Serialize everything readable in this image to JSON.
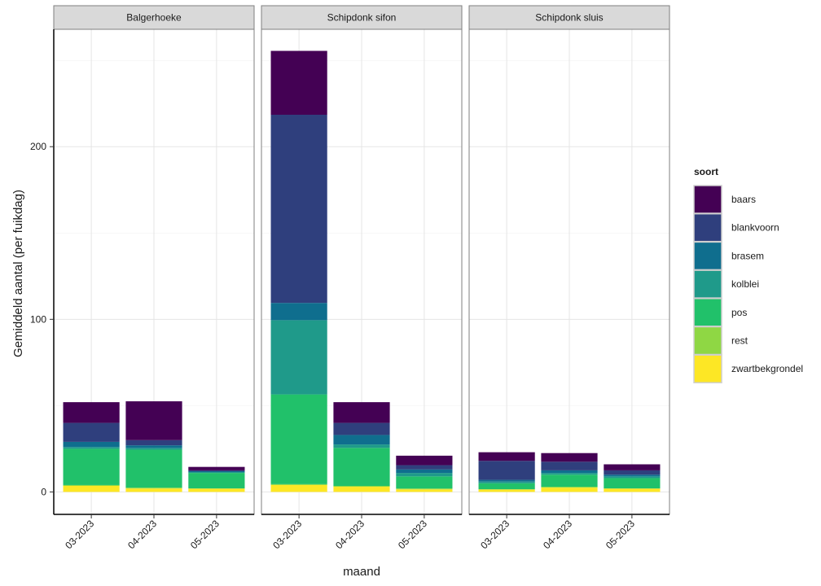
{
  "chart_data": {
    "type": "bar",
    "stacked": true,
    "title": "",
    "xlabel": "maand",
    "ylabel": "Gemiddeld aantal (per fuikdag)",
    "ylim": [
      -13,
      268
    ],
    "yticks": [
      0,
      100,
      200
    ],
    "grid": true,
    "legend_placement": "right",
    "legend_title": "soort",
    "categories": [
      "03-2023",
      "04-2023",
      "05-2023"
    ],
    "series": [
      {
        "name": "zwartbekgrondel",
        "color": "#FDE725"
      },
      {
        "name": "rest",
        "color": "#8FD744"
      },
      {
        "name": "pos",
        "color": "#21C16A"
      },
      {
        "name": "kolblei",
        "color": "#1F9A8A"
      },
      {
        "name": "brasem",
        "color": "#0F6E8E"
      },
      {
        "name": "blankvoorn",
        "color": "#2F3F7D"
      },
      {
        "name": "baars",
        "color": "#440154"
      }
    ],
    "panels": [
      {
        "name": "Balgerhoeke",
        "values": {
          "zwartbekgrondel": [
            3.5,
            2,
            2
          ],
          "rest": [
            0.5,
            0.5,
            0
          ],
          "pos": [
            21,
            22,
            9
          ],
          "kolblei": [
            1,
            1,
            0.5
          ],
          "brasem": [
            3,
            1.5,
            0.5
          ],
          "blankvoorn": [
            11,
            3,
            0.5
          ],
          "baars": [
            12,
            22.5,
            2
          ]
        }
      },
      {
        "name": "Schipdonk sifon",
        "values": {
          "zwartbekgrondel": [
            4,
            3,
            1.5
          ],
          "rest": [
            0.5,
            0.5,
            0.5
          ],
          "pos": [
            52,
            22,
            7
          ],
          "kolblei": [
            43,
            2,
            2
          ],
          "brasem": [
            10,
            5.5,
            2
          ],
          "blankvoorn": [
            109,
            7,
            2.5
          ],
          "baars": [
            37,
            12,
            5.5
          ]
        }
      },
      {
        "name": "Schipdonk sluis",
        "values": {
          "zwartbekgrondel": [
            1.5,
            2.5,
            2
          ],
          "rest": [
            0,
            0.5,
            0
          ],
          "pos": [
            3.5,
            7,
            6
          ],
          "kolblei": [
            1,
            1,
            1
          ],
          "brasem": [
            1,
            1.5,
            1
          ],
          "blankvoorn": [
            11,
            5,
            2.5
          ],
          "baars": [
            5,
            5,
            3.5
          ]
        }
      }
    ]
  }
}
